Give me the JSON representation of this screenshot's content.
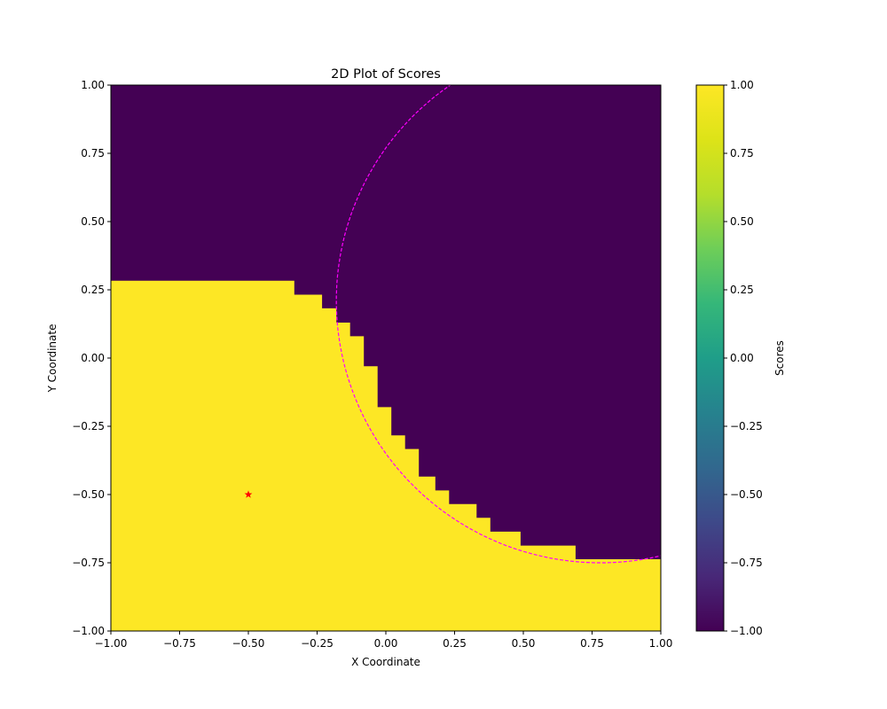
{
  "chart_data": {
    "type": "heatmap",
    "title": "2D Plot of Scores",
    "xlabel": "X Coordinate",
    "ylabel": "Y Coordinate",
    "xlim": [
      -1.0,
      1.0
    ],
    "ylim": [
      -1.0,
      1.0
    ],
    "x_ticks": [
      "−1.00",
      "−0.75",
      "−0.50",
      "−0.25",
      "0.00",
      "0.25",
      "0.50",
      "0.75",
      "1.00"
    ],
    "y_ticks": [
      "−1.00",
      "−0.75",
      "−0.50",
      "−0.25",
      "0.00",
      "0.25",
      "0.50",
      "0.75",
      "1.00"
    ],
    "x_tick_values": [
      -1.0,
      -0.75,
      -0.5,
      -0.25,
      0.0,
      0.25,
      0.5,
      0.75,
      1.0
    ],
    "y_tick_values": [
      -1.0,
      -0.75,
      -0.5,
      -0.25,
      0.0,
      0.25,
      0.5,
      0.75,
      1.0
    ],
    "colormap": "viridis",
    "colors": {
      "high": "#fde725",
      "low": "#440154",
      "curve": "#ff00ff",
      "marker": "#ff0000"
    },
    "colorbar": {
      "label": "Scores",
      "range": [
        -1.0,
        1.0
      ],
      "ticks": [
        "1.00",
        "0.75",
        "0.50",
        "0.25",
        "0.00",
        "−0.25",
        "−0.50",
        "−0.75",
        "−1.00"
      ],
      "tick_values": [
        1.0,
        0.75,
        0.5,
        0.25,
        0.0,
        -0.25,
        -0.5,
        -0.75,
        -1.0
      ]
    },
    "series": [
      {
        "kind": "region",
        "value": 1.0,
        "boundary_x": [
          -1.0,
          -0.333,
          -0.333,
          -0.232,
          -0.232,
          -0.18,
          -0.18,
          -0.13,
          -0.13,
          -0.08,
          -0.08,
          -0.03,
          -0.03,
          0.02,
          0.02,
          0.07,
          0.07,
          0.12,
          0.12,
          0.18,
          0.18,
          0.23,
          0.23,
          0.33,
          0.33,
          0.38,
          0.38,
          0.49,
          0.49,
          0.69,
          0.69,
          1.0
        ],
        "boundary_y": [
          0.283,
          0.283,
          0.232,
          0.232,
          0.182,
          0.182,
          0.13,
          0.13,
          0.08,
          0.08,
          -0.03,
          -0.03,
          -0.18,
          -0.18,
          -0.283,
          -0.283,
          -0.333,
          -0.333,
          -0.434,
          -0.434,
          -0.485,
          -0.485,
          -0.535,
          -0.535,
          -0.585,
          -0.585,
          -0.636,
          -0.636,
          -0.687,
          -0.687,
          -0.737,
          -0.737
        ]
      },
      {
        "kind": "dashed-curve",
        "center": [
          0.78,
          0.21
        ],
        "radius": 0.96,
        "theta_start_deg": 85,
        "theta_end_deg": 310
      },
      {
        "kind": "marker",
        "symbol": "star",
        "x": -0.5,
        "y": -0.5
      }
    ]
  }
}
